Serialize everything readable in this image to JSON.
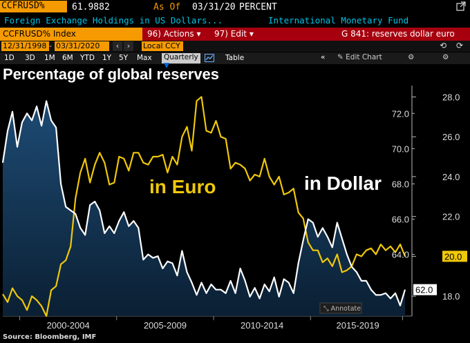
{
  "header": {
    "ticker": "CCFRUSD%",
    "value": "61.9882",
    "asof_label": "As Of",
    "asof_date": "03/31/20",
    "unit": "PERCENT",
    "description": "Foreign Exchange Holdings in US Dollars...",
    "source_org": "International Monetary Fund",
    "ext_icon": "external-link-icon"
  },
  "toolbar": {
    "security": "CCFRUSD% Index",
    "actions": "96) Actions",
    "edit": "97) Edit",
    "function": "G 841: reserves dollar euro",
    "start_date": "12/31/1998",
    "end_date": "03/31/2020",
    "currency": "Local CCY",
    "periods": [
      "1D",
      "3D",
      "1M",
      "6M",
      "YTD",
      "1Y",
      "5Y",
      "Max"
    ],
    "frequency": "Quarterly",
    "table_label": "Table",
    "edit_chart": "Edit Chart",
    "annotate": "Annotate"
  },
  "chart_data": {
    "type": "line",
    "title": "Percentage of global reserves",
    "x_labels": [
      "2000-2004",
      "2005-2009",
      "2010-2014",
      "2015-2019"
    ],
    "annotations": [
      "in Euro",
      "in Dollar"
    ],
    "source": "Source: Bloomberg, IMF",
    "series": [
      {
        "name": "in Dollar",
        "axis": "left",
        "color": "#ffffff",
        "ylim": [
          60.5,
          73.5
        ],
        "last_value_label": "62.0",
        "values": [
          69.2,
          71.0,
          72.1,
          70.1,
          71.5,
          72.0,
          71.6,
          72.4,
          71.3,
          72.7,
          71.6,
          71.2,
          68.0,
          66.7,
          66.5,
          66.3,
          65.5,
          65.1,
          66.8,
          67.0,
          66.5,
          65.2,
          65.6,
          65.2,
          65.9,
          66.4,
          65.6,
          65.9,
          65.5,
          63.7,
          64.0,
          63.8,
          63.9,
          63.2,
          63.6,
          63.5,
          62.8,
          64.2,
          63.0,
          62.4,
          61.7,
          62.4,
          61.8,
          62.3,
          62.0,
          62.0,
          61.8,
          62.5,
          61.8,
          63.2,
          62.5,
          61.6,
          62.1,
          61.5,
          62.3,
          61.9,
          62.7,
          61.6,
          62.6,
          62.4,
          61.8,
          63.5,
          64.8,
          66.0,
          65.8,
          65.0,
          65.5,
          65.0,
          64.4,
          65.8,
          64.9,
          64.0,
          63.3,
          63.0,
          62.5,
          62.5,
          62.0,
          61.7,
          61.7,
          61.8,
          61.5,
          61.8,
          61.1,
          62.0
        ]
      },
      {
        "name": "in Euro",
        "axis": "right",
        "color": "#f0c80a",
        "ylim": [
          17.0,
          28.5
        ],
        "last_value_label": "20.0",
        "values": [
          18.1,
          17.7,
          18.4,
          18.0,
          17.8,
          17.3,
          18.0,
          17.8,
          17.5,
          17.0,
          18.3,
          18.5,
          19.6,
          19.8,
          20.5,
          22.9,
          24.2,
          24.9,
          23.7,
          24.6,
          25.2,
          24.7,
          23.6,
          23.7,
          25.0,
          24.9,
          24.3,
          25.2,
          25.2,
          24.7,
          24.6,
          25.0,
          25.0,
          25.1,
          24.2,
          25.0,
          24.6,
          26.0,
          26.5,
          25.3,
          27.8,
          28.0,
          26.3,
          26.2,
          26.8,
          26.0,
          25.9,
          24.4,
          24.7,
          24.6,
          24.4,
          23.8,
          24.1,
          24.0,
          24.9,
          24.0,
          23.6,
          24.0,
          23.1,
          23.2,
          23.4,
          22.2,
          21.9,
          20.7,
          20.3,
          20.3,
          19.7,
          19.9,
          19.5,
          20.1,
          19.2,
          19.3,
          19.5,
          20.1,
          20.0,
          20.3,
          20.4,
          20.1,
          20.6,
          20.3,
          20.5,
          20.2,
          20.6,
          20.0
        ]
      }
    ],
    "left_ticks": [
      64.0,
      66.0,
      68.0,
      70.0,
      72.0
    ],
    "right_ticks": [
      18.0,
      20.0,
      22.0,
      24.0,
      26.0,
      28.0
    ]
  }
}
